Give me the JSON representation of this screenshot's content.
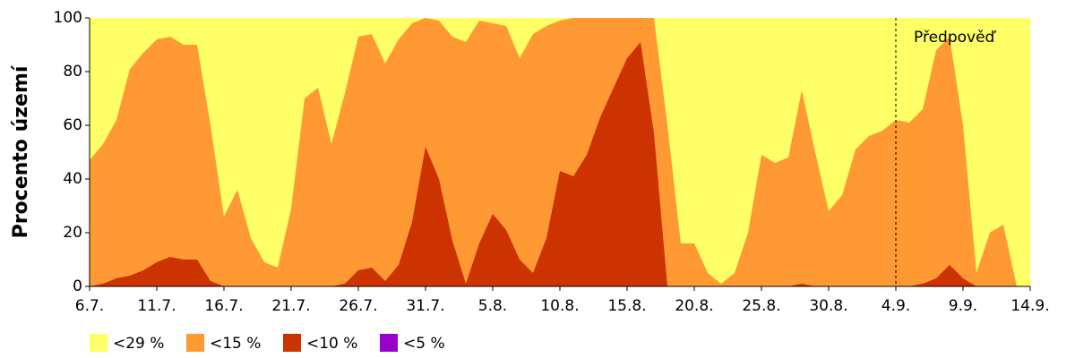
{
  "chart_data": {
    "type": "area",
    "y_label": "Procento území",
    "categories": [
      "6.7.",
      null,
      null,
      null,
      null,
      "11.7.",
      null,
      null,
      null,
      null,
      "16.7.",
      null,
      null,
      null,
      null,
      "21.7.",
      null,
      null,
      null,
      null,
      "26.7.",
      null,
      null,
      null,
      null,
      "31.7.",
      null,
      null,
      null,
      null,
      "5.8.",
      null,
      null,
      null,
      null,
      "10.8.",
      null,
      null,
      null,
      null,
      "15.8.",
      null,
      null,
      null,
      null,
      "20.8.",
      null,
      null,
      null,
      null,
      "25.8.",
      null,
      null,
      null,
      null,
      "30.8.",
      null,
      null,
      null,
      null,
      "4.9.",
      null,
      null,
      null,
      null,
      "9.9.",
      null,
      null,
      null,
      null,
      "14.9."
    ],
    "series": [
      {
        "name": "<29 %",
        "color": "#ffff66",
        "values": [
          100,
          100,
          100,
          100,
          100,
          100,
          100,
          100,
          100,
          100,
          100,
          100,
          100,
          100,
          100,
          100,
          100,
          100,
          100,
          100,
          100,
          100,
          100,
          100,
          100,
          100,
          100,
          100,
          100,
          100,
          100,
          100,
          100,
          100,
          100,
          100,
          100,
          100,
          100,
          100,
          100,
          100,
          100,
          100,
          100,
          100,
          100,
          100,
          100,
          100,
          100,
          100,
          100,
          100,
          100,
          100,
          100,
          100,
          100,
          100,
          100,
          100,
          100,
          100,
          100,
          100,
          100,
          100,
          100,
          100,
          100
        ]
      },
      {
        "name": "<15 %",
        "color": "#ff9933",
        "values": [
          47,
          53,
          62,
          81,
          87,
          92,
          93,
          90,
          90,
          60,
          26,
          36,
          18,
          9,
          7,
          29,
          70,
          74,
          53,
          72,
          93,
          94,
          83,
          92,
          98,
          100,
          99,
          93,
          91,
          99,
          98,
          97,
          85,
          94,
          97,
          99,
          100,
          100,
          100,
          100,
          100,
          100,
          100,
          60,
          16,
          16,
          5,
          1,
          5,
          20,
          49,
          46,
          48,
          73,
          50,
          28,
          34,
          51,
          56,
          58,
          62,
          61,
          66,
          88,
          93,
          60,
          5,
          20,
          23,
          0,
          0
        ]
      },
      {
        "name": "<10 %",
        "color": "#cc3300",
        "values": [
          0,
          1,
          3,
          4,
          6,
          9,
          11,
          10,
          10,
          2,
          0,
          0,
          0,
          0,
          0,
          0,
          0,
          0,
          0,
          1,
          6,
          7,
          2,
          8,
          24,
          52,
          40,
          17,
          1,
          16,
          27,
          21,
          10,
          5,
          18,
          43,
          41,
          49,
          63,
          74,
          85,
          91,
          57,
          0,
          0,
          0,
          0,
          0,
          0,
          0,
          0,
          0,
          0,
          1,
          0,
          0,
          0,
          0,
          0,
          0,
          0,
          0,
          1,
          3,
          8,
          3,
          0,
          0,
          0,
          0,
          0
        ]
      },
      {
        "name": "<5 %",
        "color": "#9900cc",
        "values": [
          0,
          0,
          0,
          0,
          0,
          0,
          0,
          0,
          0,
          0,
          0,
          0,
          0,
          0,
          0,
          0,
          0,
          0,
          0,
          0,
          0,
          0,
          0,
          0,
          0,
          0,
          0,
          0,
          0,
          0,
          0,
          0,
          0,
          0,
          0,
          0,
          0,
          0,
          0,
          0,
          0,
          0,
          0,
          0,
          0,
          0,
          0,
          0,
          0,
          0,
          0,
          0,
          0,
          0,
          0,
          0,
          0,
          0,
          0,
          0,
          0,
          0,
          0,
          0,
          0,
          0,
          0,
          0,
          0,
          0,
          0
        ]
      }
    ],
    "ylim": [
      0,
      100
    ],
    "yticks": [
      0,
      20,
      40,
      60,
      80,
      100
    ],
    "annotation": {
      "text": "Předpověď",
      "at": "4.9."
    }
  }
}
